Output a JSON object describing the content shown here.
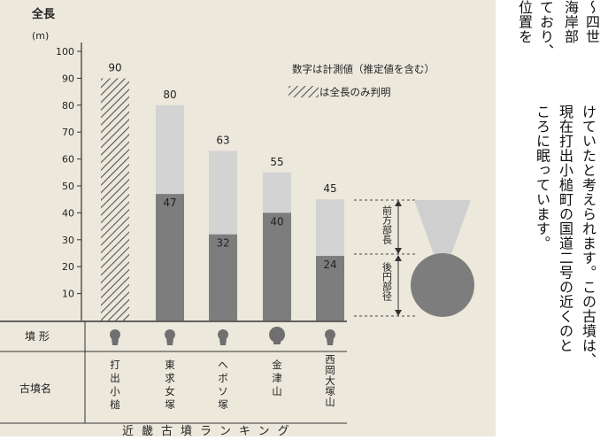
{
  "chart_data": {
    "type": "bar",
    "title": "近畿古墳ランキング",
    "y_axis_title": "全長",
    "y_axis_unit": "(m)",
    "ylim": [
      0,
      100
    ],
    "yticks": [
      10,
      20,
      30,
      40,
      50,
      60,
      70,
      80,
      90,
      100
    ],
    "categories": [
      "打出小槌",
      "東求女塚",
      "ヘボソ塚",
      "金津山",
      "西岡大塚山"
    ],
    "total_length": [
      90,
      80,
      63,
      55,
      45
    ],
    "rear_circle_diameter": [
      null,
      47,
      32,
      40,
      24
    ],
    "total_only_known": [
      true,
      false,
      false,
      false,
      false
    ],
    "row_labels": {
      "shape": "墳 形",
      "name": "古墳名"
    },
    "legend": {
      "note": "数字は計測値（推定値を含む）",
      "hatched": "は全長のみ判明"
    },
    "shape_legend": {
      "front": "前方部長",
      "rear": "後円部径"
    },
    "colors": {
      "front": "#d3d3d3",
      "rear": "#7d7d7d",
      "background": "#ece8dc"
    }
  },
  "text": {
    "col1": "～四世",
    "col2": "海岸部",
    "col3": "ており、",
    "col4": "位置を",
    "col5": "けていたと考えられます。この古墳は、",
    "col6": "現在打出小槌町の国道二号の近くのと",
    "col7": "ころに眠っています。"
  }
}
